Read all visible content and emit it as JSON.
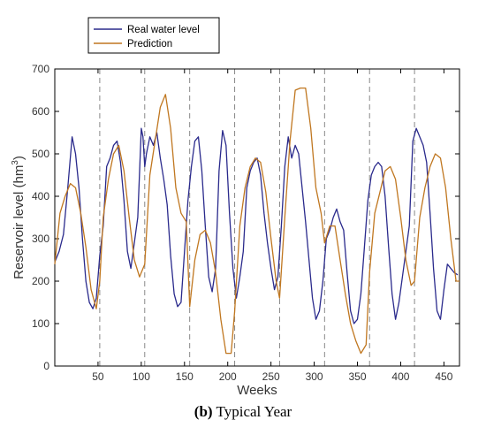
{
  "caption": {
    "label": "(b)",
    "text": " Typical Year"
  },
  "chart_data": {
    "type": "line",
    "xlabel": "Weeks",
    "ylabel_main": "Reservoir level (hm",
    "ylabel_sup": "3",
    "ylabel_end": ")",
    "xlim": [
      0,
      468
    ],
    "ylim": [
      0,
      700
    ],
    "xticks": [
      50,
      100,
      150,
      200,
      250,
      300,
      350,
      400,
      450
    ],
    "yticks": [
      0,
      100,
      200,
      300,
      400,
      500,
      600,
      700
    ],
    "year_boundaries": [
      52,
      104,
      156,
      208,
      260,
      312,
      364,
      416
    ],
    "legend_position": "top-left, outside",
    "series": [
      {
        "name": "Real water level",
        "color": "#2a2a8c",
        "x": [
          0,
          5,
          10,
          15,
          20,
          24,
          28,
          32,
          36,
          40,
          44,
          48,
          52,
          56,
          60,
          64,
          68,
          72,
          76,
          80,
          84,
          88,
          92,
          96,
          100,
          102,
          104,
          106,
          110,
          114,
          118,
          122,
          126,
          130,
          134,
          138,
          142,
          146,
          150,
          154,
          158,
          162,
          166,
          170,
          174,
          178,
          182,
          186,
          190,
          194,
          198,
          202,
          206,
          210,
          214,
          218,
          222,
          226,
          230,
          234,
          238,
          242,
          246,
          250,
          254,
          258,
          262,
          266,
          270,
          274,
          278,
          282,
          286,
          290,
          294,
          298,
          302,
          306,
          310,
          314,
          318,
          322,
          326,
          330,
          334,
          338,
          342,
          346,
          350,
          354,
          358,
          362,
          366,
          370,
          374,
          378,
          382,
          386,
          390,
          394,
          398,
          402,
          406,
          410,
          414,
          418,
          422,
          426,
          430,
          434,
          438,
          442,
          446,
          450,
          454,
          458,
          462,
          466
        ],
        "values": [
          245,
          270,
          310,
          420,
          540,
          500,
          420,
          300,
          200,
          150,
          135,
          160,
          260,
          330,
          470,
          490,
          520,
          530,
          480,
          390,
          270,
          230,
          290,
          350,
          560,
          540,
          470,
          500,
          540,
          520,
          550,
          490,
          440,
          380,
          260,
          170,
          140,
          150,
          270,
          390,
          470,
          530,
          540,
          460,
          330,
          210,
          175,
          230,
          460,
          555,
          520,
          360,
          230,
          160,
          210,
          270,
          420,
          460,
          480,
          490,
          450,
          360,
          290,
          230,
          180,
          210,
          330,
          470,
          540,
          490,
          520,
          500,
          420,
          340,
          250,
          160,
          110,
          130,
          200,
          300,
          320,
          350,
          370,
          340,
          320,
          220,
          130,
          100,
          110,
          170,
          280,
          390,
          450,
          470,
          480,
          470,
          400,
          280,
          170,
          110,
          150,
          210,
          270,
          330,
          530,
          560,
          540,
          520,
          480,
          360,
          230,
          130,
          110,
          180,
          240,
          230,
          220,
          215
        ]
      },
      {
        "name": "Prediction",
        "color": "#c07720",
        "x": [
          0,
          6,
          12,
          18,
          24,
          30,
          36,
          42,
          48,
          52,
          56,
          62,
          68,
          74,
          80,
          86,
          92,
          98,
          104,
          110,
          116,
          122,
          128,
          134,
          140,
          146,
          152,
          156,
          162,
          168,
          174,
          180,
          186,
          192,
          198,
          204,
          208,
          214,
          220,
          226,
          232,
          238,
          244,
          250,
          256,
          260,
          266,
          272,
          278,
          284,
          290,
          296,
          302,
          308,
          312,
          318,
          324,
          330,
          336,
          342,
          348,
          354,
          360,
          364,
          370,
          376,
          382,
          388,
          394,
          400,
          406,
          412,
          416,
          422,
          428,
          434,
          440,
          446,
          452,
          458,
          464,
          468
        ],
        "values": [
          240,
          360,
          400,
          430,
          420,
          360,
          280,
          180,
          135,
          200,
          350,
          440,
          500,
          520,
          460,
          350,
          250,
          210,
          240,
          450,
          530,
          610,
          640,
          560,
          420,
          360,
          340,
          140,
          250,
          310,
          320,
          290,
          220,
          110,
          30,
          30,
          130,
          330,
          420,
          470,
          490,
          480,
          410,
          300,
          200,
          160,
          350,
          530,
          650,
          655,
          655,
          560,
          420,
          360,
          290,
          330,
          330,
          250,
          170,
          100,
          60,
          30,
          50,
          220,
          360,
          410,
          460,
          470,
          440,
          350,
          250,
          190,
          200,
          350,
          420,
          470,
          500,
          490,
          420,
          300,
          200,
          200
        ]
      }
    ]
  }
}
